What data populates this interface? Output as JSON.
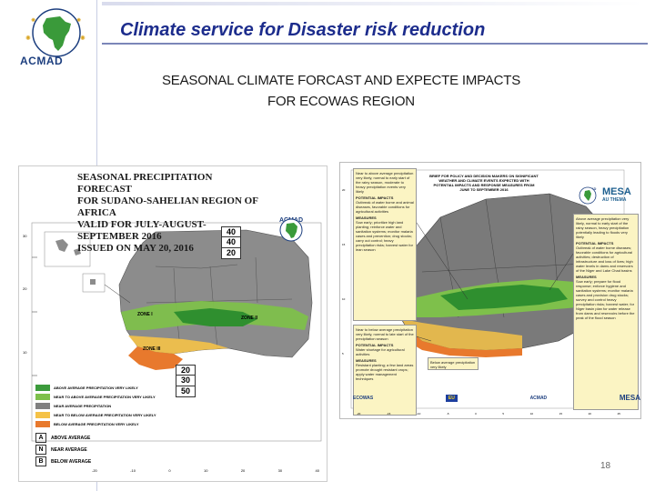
{
  "slide": {
    "title": "Climate service for Disaster risk reduction",
    "subtitle_line1": "SEASONAL CLIMATE FORCAST AND EXPECTE IMPACTS",
    "subtitle_line2": "FOR ECOWAS REGION",
    "logo_text": "ACMAD",
    "page_number": "18"
  },
  "left_map": {
    "title_lines": [
      "SEASONAL  PRECIPITATION FORECAST",
      "FOR SUDANO-SAHELIAN REGION OF AFRICA",
      "VALID FOR JULY-AUGUST-SEPTEMBER 2016",
      "ISSUED ON MAY 20, 2016"
    ],
    "logo_text": "ACMAD",
    "zones": [
      "ZONE I",
      "ZONE II",
      "ZONE III"
    ],
    "prob_box_1": [
      "40",
      "40",
      "20"
    ],
    "prob_box_2": [
      "20",
      "30",
      "50"
    ],
    "legend_items": [
      "ABOVE AVERAGE PRECIPITATION VERY LIKELY",
      "NEAR TO ABOVE AVERAGE PRECIPITATION VERY LIKELY",
      "NEAR AVERAGE PRECIPITATION",
      "NEAR TO BELOW AVERAGE PRECIPITATION VERY LIKELY",
      "BELOW AVERAGE PRECIPITATION VERY LIKELY"
    ],
    "legend_colors": [
      "#3c9b3c",
      "#7ec04b",
      "#808080",
      "#f5c247",
      "#e8792d"
    ],
    "key": [
      {
        "letter": "A",
        "text": "ABOVE AVERAGE"
      },
      {
        "letter": "N",
        "text": "NEAR AVERAGE"
      },
      {
        "letter": "B",
        "text": "BELOW AVERAGE"
      }
    ],
    "x_ticks": [
      "-20",
      "-10",
      "0",
      "10",
      "20",
      "30",
      "40"
    ],
    "y_ticks": [
      "30",
      "20",
      "10"
    ]
  },
  "right_map": {
    "header": "BRIEF FOR POLICY AND DECISION MAKERS ON SIGNIFICANT WEATHER AND CLIMATE EVENTS EXPECTED WITH POTENTIAL IMPACTS AND RESPONSE MEASURES FROM JUNE TO SEPTEMBER 2016",
    "logo_mesa": "MESA",
    "logo_thema": "AU THEMA",
    "logo_acmad": "ACMAD",
    "box_top_left": "Near to above average precipitation very likely, normal to early start of the rainy season, moderate to heavy precipitation events very likely",
    "box_top_left_impacts_title": "POTENTIAL IMPACTS",
    "box_top_left_impacts": "Outbreak of water borne and animal diseases, favorable conditions for agricultural activities",
    "box_top_left_measures_title": "MEASURES",
    "box_top_left_measures": "Sow early; prioritize high land planting; reinforce water and sanitation systems; monitor malaria cases and prevention; drug stocks; carry out control; heavy precipitation risks; harvest water for lean season",
    "box_right": "Above average precipitation very likely, normal to early start of the rainy season, heavy precipitation potentially leading to floods very likely",
    "box_right_impacts_title": "POTENTIAL IMPACTS",
    "box_right_impacts": "Outbreak of water borne diseases; favorable conditions for agricultural activities; destruction of infrastructure and loss of lives; high water levels in dams and reservoirs of the Niger and Lake Chad basins",
    "box_right_measures_title": "MEASURES",
    "box_right_measures": "Sow early; prepare for flood response; enforce hygiene and sanitation systems; monitor malaria cases and provision drug stocks; survey and control heavy precipitation risks; harvest water; for Niger basin plan for water release from dams and reservoirs before the peak of the flood season",
    "box_bottom_left": "Near to below average precipitation very likely, normal to late start of the precipitation season",
    "box_bottom_left_impacts_title": "POTENTIAL IMPACTS",
    "box_bottom_left_impacts": "Water shortage for agricultural activities",
    "box_bottom_left_measures_title": "MEASURES",
    "box_bottom_left_measures": "Resistant planting; a few land areas promote drought resistant crops; apply water management techniques",
    "box_bottom_center": "Below average precipitation very likely",
    "footer_logos": [
      "ECOWAS",
      "EU",
      "ACMAD",
      "MESA"
    ],
    "x_ticks": [
      "-20",
      "-15",
      "-10",
      "-5",
      "0",
      "5",
      "10",
      "15",
      "20",
      "25"
    ],
    "y_ticks": [
      "20",
      "15",
      "10",
      "5"
    ]
  }
}
